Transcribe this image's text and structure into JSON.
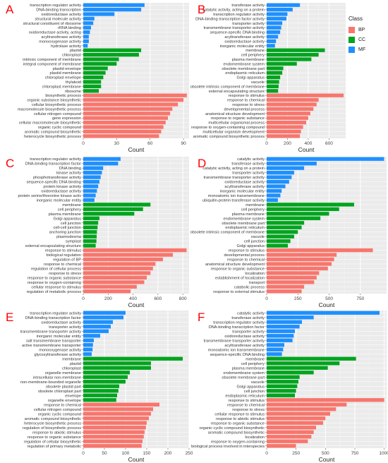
{
  "colors": {
    "BP": "#F8766D",
    "CC": "#00A41E",
    "MF": "#1E90FF"
  },
  "legend": {
    "title": "Class",
    "items": [
      {
        "label": "BP",
        "color": "#F8766D"
      },
      {
        "label": "CC",
        "color": "#00A41E"
      },
      {
        "label": "MF",
        "color": "#1E90FF"
      }
    ]
  },
  "chart_data": [
    {
      "type": "bar",
      "orientation": "horizontal",
      "panel": "A",
      "xlabel": "Count",
      "xlim": [
        0,
        95
      ],
      "xticks": [
        0,
        30,
        60,
        90
      ],
      "grid": true,
      "series": [
        {
          "name": "MF",
          "categories": [
            "transcription regulator activity",
            "DNA-binding transcription",
            "oxidoreductase activity",
            "structural molecule activity",
            "structural constituent of ribosome",
            "rRNA binding",
            "oxidoreductase activity, acting",
            "acyltransferase activity",
            "monooxygenase activity",
            "hydrolase activity"
          ],
          "values": [
            55,
            52,
            28,
            10,
            9,
            7,
            6,
            5,
            5,
            4
          ]
        },
        {
          "name": "CC",
          "categories": [
            "plastid",
            "chloroplast",
            "intrinsic component of membrane",
            "integral component of membrane",
            "plastid envelope",
            "plastid membrane",
            "chloroplast envelope",
            "thylakoid",
            "chloroplast membrane",
            "ribosome"
          ],
          "values": [
            52,
            50,
            32,
            30,
            22,
            20,
            18,
            16,
            16,
            14
          ]
        },
        {
          "name": "BP",
          "categories": [
            "biosynthetic process",
            "organic substance biosynthetic",
            "cellular biosynthetic process",
            "macromolecule biosynthetic process",
            "cellular nitrogen compound",
            "gene expression",
            "cellular macromolecule biosynthetic",
            "organic cyclic compound",
            "aromatic compound biosynthetic",
            "heterocycle biosynthetic process"
          ],
          "values": [
            93,
            90,
            85,
            80,
            78,
            76,
            74,
            72,
            70,
            68
          ]
        }
      ]
    },
    {
      "type": "bar",
      "orientation": "horizontal",
      "panel": "B",
      "xlabel": "Count",
      "xlim": [
        0,
        760
      ],
      "xticks": [
        0,
        200,
        400,
        600
      ],
      "grid": true,
      "series": [
        {
          "name": "MF",
          "categories": [
            "transferase activity",
            "catalytic activity, acting on a protein",
            "transcription regulator activity",
            "DNA-binding transcription factor activity",
            "transporter activity",
            "transmembrane transporter activity",
            "sequence-specific DNA binding",
            "acyltransferase activity",
            "oxidoreductase activity",
            "inorganic molecular entity"
          ],
          "values": [
            320,
            250,
            200,
            190,
            150,
            140,
            130,
            110,
            90,
            80
          ]
        },
        {
          "name": "CC",
          "categories": [
            "membrane",
            "cell periphery",
            "plasma membrane",
            "endomembrane system",
            "obsolete membrane part",
            "endoplasmic reticulum",
            "Golgi apparatus",
            "vacuole",
            "obsolete intrinsic component of membrane",
            "external encapsulating structure"
          ],
          "values": [
            560,
            500,
            430,
            290,
            160,
            150,
            130,
            120,
            115,
            110
          ]
        },
        {
          "name": "BP",
          "categories": [
            "response to stimulus",
            "response to chemical",
            "response to stress",
            "developmental process",
            "anatomical structure development",
            "response to organic substance",
            "multicellular organismal process",
            "response to oxygen-containing compound",
            "multicellular organism development",
            "aromatic compound biosynthetic process"
          ],
          "values": [
            740,
            500,
            480,
            450,
            420,
            400,
            380,
            350,
            330,
            320
          ]
        }
      ]
    },
    {
      "type": "bar",
      "orientation": "horizontal",
      "panel": "C",
      "xlabel": "Count",
      "xlim": [
        0,
        850
      ],
      "xticks": [
        0,
        200,
        400,
        600,
        800
      ],
      "grid": true,
      "series": [
        {
          "name": "MF",
          "categories": [
            "transcription regulator activity",
            "DNA-binding transcription factor",
            "DNA binding",
            "kinase activity",
            "phosphotransferase activity",
            "sequence-specific DNA binding",
            "protein kinase activity",
            "oxidoreductase activity",
            "protein serine/threonine kinase activ",
            "inorganic molecular entity"
          ],
          "values": [
            300,
            280,
            160,
            150,
            140,
            130,
            120,
            110,
            100,
            90
          ]
        },
        {
          "name": "CC",
          "categories": [
            "membrane",
            "cell periphery",
            "plasma membrane",
            "Golgi apparatus",
            "cell junction",
            "cell-cell junction",
            "anchoring junction",
            "plasmodesma",
            "symplast",
            "external encapsulating structure"
          ],
          "values": [
            540,
            480,
            410,
            130,
            120,
            115,
            110,
            108,
            106,
            100
          ]
        },
        {
          "name": "BP",
          "categories": [
            "response to stimulus",
            "biological regulation",
            "regulation of BP",
            "response to chemical",
            "regulation of cellular process",
            "response to stress",
            "response to organic substance",
            "response to oxygen-containing",
            "cellular response to stimulus",
            "regulation of metabolic process"
          ],
          "values": [
            830,
            720,
            640,
            580,
            560,
            540,
            510,
            490,
            430,
            380
          ]
        }
      ]
    },
    {
      "type": "bar",
      "orientation": "horizontal",
      "panel": "D",
      "xlabel": "Count",
      "xlim": [
        0,
        960
      ],
      "xticks": [
        0,
        250,
        500,
        750
      ],
      "grid": true,
      "series": [
        {
          "name": "MF",
          "categories": [
            "catalytic activity",
            "transferase activity",
            "catalytic activity, acting on a protein",
            "transporter activity",
            "transmembrane transporter activity",
            "oxidoreductase activity",
            "acyltransferase activity",
            "inorganic molecular entity",
            "monoatomic ion transmembrane",
            "ubiquitin-protein transferase activity"
          ],
          "values": [
            940,
            400,
            300,
            220,
            200,
            180,
            150,
            120,
            110,
            90
          ]
        },
        {
          "name": "CC",
          "categories": [
            "membrane",
            "cell periphery",
            "plasma membrane",
            "endomembrane system",
            "obsolete membrane part",
            "endoplasmic reticulum",
            "obsolete intrinsic component of membrane",
            "vacuole",
            "cell junction",
            "Golgi apparatus"
          ],
          "values": [
            700,
            580,
            500,
            430,
            300,
            280,
            250,
            220,
            190,
            170
          ]
        },
        {
          "name": "BP",
          "categories": [
            "response to stimulus",
            "developmental process",
            "response to chemical",
            "anatomical structure development",
            "response to organic substance",
            "localization",
            "establishment of localization",
            "transport",
            "catabolic process",
            "response to external stimulus"
          ],
          "values": [
            850,
            560,
            540,
            520,
            490,
            420,
            400,
            380,
            300,
            280
          ]
        }
      ]
    },
    {
      "type": "bar",
      "orientation": "horizontal",
      "panel": "E",
      "xlabel": "Count",
      "xlim": [
        0,
        250
      ],
      "xticks": [
        0,
        50,
        100,
        150,
        200,
        250
      ],
      "grid": true,
      "series": [
        {
          "name": "MF",
          "categories": [
            "transcription regulator activity",
            "DNA-binding transcription factor",
            "oxidoreductase activity",
            "transporter activity",
            "transmembrane transporter activity",
            "inorganic molecular entity",
            "salt transmembrane transporter",
            "active transmembrane transporter",
            "monooxygenase activity",
            "glycosyltransferase activity"
          ],
          "values": [
            100,
            95,
            70,
            65,
            60,
            40,
            25,
            23,
            22,
            20
          ]
        },
        {
          "name": "CC",
          "categories": [
            "membrane",
            "plastid",
            "chloroplast",
            "organelle membrane",
            "intracellular non-membrane",
            "non-membrane-bounded organelle",
            "obsolete plastid part",
            "obsolete chloroplast part",
            "envelope",
            "organelle envelope"
          ],
          "values": [
            235,
            160,
            160,
            110,
            105,
            100,
            85,
            83,
            80,
            78
          ]
        },
        {
          "name": "BP",
          "categories": [
            "response to chemical",
            "cellular nitrogen compound",
            "organic cyclic compound",
            "aromatic compound biosynthetic",
            "heterocycle biosynthetic process",
            "regulation of biosynthetic process",
            "response to abiotic stimulus",
            "response to organic substance",
            "regulation of cellular biosynthetic",
            "regulation of primary metabolic"
          ],
          "values": [
            180,
            165,
            160,
            155,
            150,
            148,
            145,
            143,
            140,
            138
          ]
        }
      ]
    },
    {
      "type": "bar",
      "orientation": "horizontal",
      "panel": "F",
      "xlabel": "Count",
      "xlim": [
        0,
        1020
      ],
      "xticks": [
        0,
        250,
        500,
        750,
        1000
      ],
      "grid": true,
      "series": [
        {
          "name": "MF",
          "categories": [
            "catalytic activity",
            "transferase activity",
            "transcription regulator activity",
            "DNA-binding transcription factor",
            "transporter activity",
            "oxidoreductase activity",
            "transmembrane transporter activity",
            "acyltransferase activity",
            "monoatomic ion transmembrane",
            "sequence-specific DNA binding"
          ],
          "values": [
            960,
            400,
            300,
            280,
            240,
            230,
            220,
            150,
            140,
            130
          ]
        },
        {
          "name": "CC",
          "categories": [
            "membrane",
            "cell periphery",
            "plasma membrane",
            "endomembrane system",
            "obsolete membrane part",
            "vacuole",
            "Golgi apparatus",
            "cell junction",
            "endoplasmic reticulum"
          ],
          "values": [
            760,
            620,
            520,
            400,
            280,
            270,
            260,
            250,
            240
          ]
        },
        {
          "name": "BP",
          "categories": [
            "response to stimulus",
            "response to chemical",
            "response to stress",
            "cellular response to stimulus",
            "response to abiotic stimulus",
            "response to organic substance",
            "organic cyclic compound biosynthetic",
            "aromatic compound biosynthetic",
            "localization",
            "response to oxygen-containing",
            "biological process involved in interspecies"
          ],
          "values": [
            1000,
            680,
            590,
            540,
            500,
            480,
            420,
            400,
            380,
            350,
            250
          ]
        }
      ]
    }
  ]
}
